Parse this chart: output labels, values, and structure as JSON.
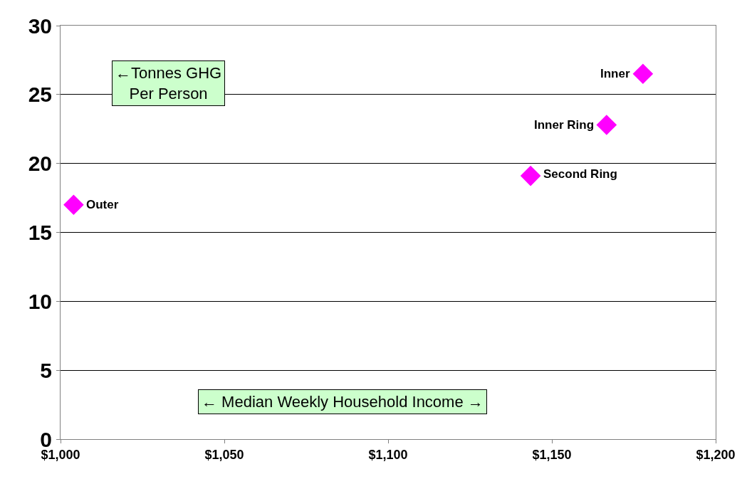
{
  "chart_data": {
    "type": "scatter",
    "xlabel": "← Median Weekly Household Income →",
    "ylabel": "←Tonnes GHG\nPer Person",
    "x": [
      1004,
      1143.5,
      1166.7,
      1177.8
    ],
    "series": [
      {
        "color": "#ff00ff",
        "values": [
          17.0,
          19.1,
          22.8,
          26.5
        ]
      }
    ],
    "annotations": [
      {
        "text": "Outer",
        "x": 1004,
        "y": 17.0
      },
      {
        "text": "Second Ring",
        "x": 1143.5,
        "y": 19.1
      },
      {
        "text": "Inner Ring",
        "x": 1166.7,
        "y": 22.8
      },
      {
        "text": "Inner",
        "x": 1177.8,
        "y": 26.5
      }
    ],
    "xlim": [
      1000,
      1200
    ],
    "xticks": [
      {
        "value": 1000,
        "label": "$1,000"
      },
      {
        "value": 1050,
        "label": "$1,050"
      },
      {
        "value": 1100,
        "label": "$1,100"
      },
      {
        "value": 1150,
        "label": "$1,150"
      },
      {
        "value": 1200,
        "label": "$1,200"
      }
    ],
    "ylim": [
      0,
      30
    ],
    "yticks": [
      0,
      5,
      10,
      15,
      20,
      25,
      30
    ],
    "grid": "y",
    "marker": "diamond"
  }
}
